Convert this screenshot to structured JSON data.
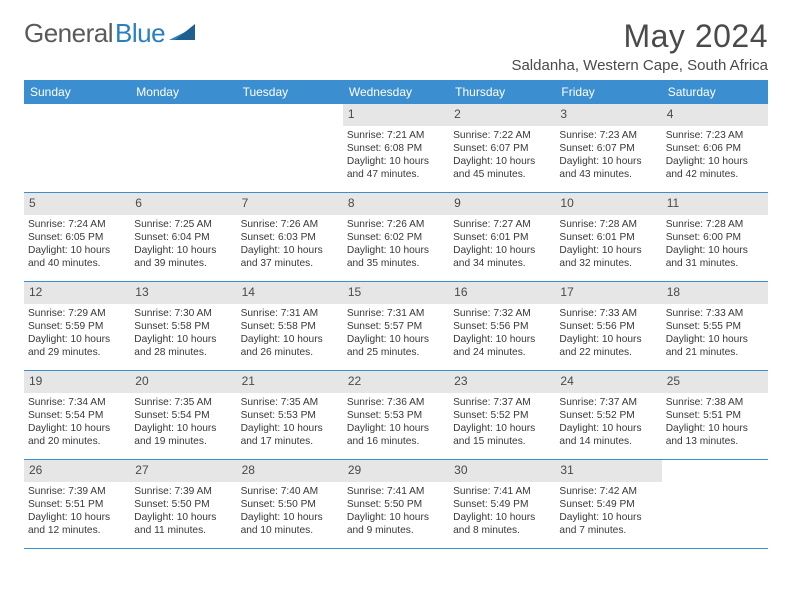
{
  "logo": {
    "part1": "General",
    "part2": "Blue"
  },
  "title": "May 2024",
  "location": "Saldanha, Western Cape, South Africa",
  "colors": {
    "header_bg": "#3b8fd1",
    "header_text": "#ffffff",
    "daynum_bg": "#e6e6e6",
    "divider": "#3b8fd1",
    "body_text": "#383838",
    "title_text": "#4a4a4a"
  },
  "daysOfWeek": [
    "Sunday",
    "Monday",
    "Tuesday",
    "Wednesday",
    "Thursday",
    "Friday",
    "Saturday"
  ],
  "weeks": [
    [
      {
        "n": "",
        "sr": "",
        "ss": "",
        "dl": ""
      },
      {
        "n": "",
        "sr": "",
        "ss": "",
        "dl": ""
      },
      {
        "n": "",
        "sr": "",
        "ss": "",
        "dl": ""
      },
      {
        "n": "1",
        "sr": "Sunrise: 7:21 AM",
        "ss": "Sunset: 6:08 PM",
        "dl": "Daylight: 10 hours and 47 minutes."
      },
      {
        "n": "2",
        "sr": "Sunrise: 7:22 AM",
        "ss": "Sunset: 6:07 PM",
        "dl": "Daylight: 10 hours and 45 minutes."
      },
      {
        "n": "3",
        "sr": "Sunrise: 7:23 AM",
        "ss": "Sunset: 6:07 PM",
        "dl": "Daylight: 10 hours and 43 minutes."
      },
      {
        "n": "4",
        "sr": "Sunrise: 7:23 AM",
        "ss": "Sunset: 6:06 PM",
        "dl": "Daylight: 10 hours and 42 minutes."
      }
    ],
    [
      {
        "n": "5",
        "sr": "Sunrise: 7:24 AM",
        "ss": "Sunset: 6:05 PM",
        "dl": "Daylight: 10 hours and 40 minutes."
      },
      {
        "n": "6",
        "sr": "Sunrise: 7:25 AM",
        "ss": "Sunset: 6:04 PM",
        "dl": "Daylight: 10 hours and 39 minutes."
      },
      {
        "n": "7",
        "sr": "Sunrise: 7:26 AM",
        "ss": "Sunset: 6:03 PM",
        "dl": "Daylight: 10 hours and 37 minutes."
      },
      {
        "n": "8",
        "sr": "Sunrise: 7:26 AM",
        "ss": "Sunset: 6:02 PM",
        "dl": "Daylight: 10 hours and 35 minutes."
      },
      {
        "n": "9",
        "sr": "Sunrise: 7:27 AM",
        "ss": "Sunset: 6:01 PM",
        "dl": "Daylight: 10 hours and 34 minutes."
      },
      {
        "n": "10",
        "sr": "Sunrise: 7:28 AM",
        "ss": "Sunset: 6:01 PM",
        "dl": "Daylight: 10 hours and 32 minutes."
      },
      {
        "n": "11",
        "sr": "Sunrise: 7:28 AM",
        "ss": "Sunset: 6:00 PM",
        "dl": "Daylight: 10 hours and 31 minutes."
      }
    ],
    [
      {
        "n": "12",
        "sr": "Sunrise: 7:29 AM",
        "ss": "Sunset: 5:59 PM",
        "dl": "Daylight: 10 hours and 29 minutes."
      },
      {
        "n": "13",
        "sr": "Sunrise: 7:30 AM",
        "ss": "Sunset: 5:58 PM",
        "dl": "Daylight: 10 hours and 28 minutes."
      },
      {
        "n": "14",
        "sr": "Sunrise: 7:31 AM",
        "ss": "Sunset: 5:58 PM",
        "dl": "Daylight: 10 hours and 26 minutes."
      },
      {
        "n": "15",
        "sr": "Sunrise: 7:31 AM",
        "ss": "Sunset: 5:57 PM",
        "dl": "Daylight: 10 hours and 25 minutes."
      },
      {
        "n": "16",
        "sr": "Sunrise: 7:32 AM",
        "ss": "Sunset: 5:56 PM",
        "dl": "Daylight: 10 hours and 24 minutes."
      },
      {
        "n": "17",
        "sr": "Sunrise: 7:33 AM",
        "ss": "Sunset: 5:56 PM",
        "dl": "Daylight: 10 hours and 22 minutes."
      },
      {
        "n": "18",
        "sr": "Sunrise: 7:33 AM",
        "ss": "Sunset: 5:55 PM",
        "dl": "Daylight: 10 hours and 21 minutes."
      }
    ],
    [
      {
        "n": "19",
        "sr": "Sunrise: 7:34 AM",
        "ss": "Sunset: 5:54 PM",
        "dl": "Daylight: 10 hours and 20 minutes."
      },
      {
        "n": "20",
        "sr": "Sunrise: 7:35 AM",
        "ss": "Sunset: 5:54 PM",
        "dl": "Daylight: 10 hours and 19 minutes."
      },
      {
        "n": "21",
        "sr": "Sunrise: 7:35 AM",
        "ss": "Sunset: 5:53 PM",
        "dl": "Daylight: 10 hours and 17 minutes."
      },
      {
        "n": "22",
        "sr": "Sunrise: 7:36 AM",
        "ss": "Sunset: 5:53 PM",
        "dl": "Daylight: 10 hours and 16 minutes."
      },
      {
        "n": "23",
        "sr": "Sunrise: 7:37 AM",
        "ss": "Sunset: 5:52 PM",
        "dl": "Daylight: 10 hours and 15 minutes."
      },
      {
        "n": "24",
        "sr": "Sunrise: 7:37 AM",
        "ss": "Sunset: 5:52 PM",
        "dl": "Daylight: 10 hours and 14 minutes."
      },
      {
        "n": "25",
        "sr": "Sunrise: 7:38 AM",
        "ss": "Sunset: 5:51 PM",
        "dl": "Daylight: 10 hours and 13 minutes."
      }
    ],
    [
      {
        "n": "26",
        "sr": "Sunrise: 7:39 AM",
        "ss": "Sunset: 5:51 PM",
        "dl": "Daylight: 10 hours and 12 minutes."
      },
      {
        "n": "27",
        "sr": "Sunrise: 7:39 AM",
        "ss": "Sunset: 5:50 PM",
        "dl": "Daylight: 10 hours and 11 minutes."
      },
      {
        "n": "28",
        "sr": "Sunrise: 7:40 AM",
        "ss": "Sunset: 5:50 PM",
        "dl": "Daylight: 10 hours and 10 minutes."
      },
      {
        "n": "29",
        "sr": "Sunrise: 7:41 AM",
        "ss": "Sunset: 5:50 PM",
        "dl": "Daylight: 10 hours and 9 minutes."
      },
      {
        "n": "30",
        "sr": "Sunrise: 7:41 AM",
        "ss": "Sunset: 5:49 PM",
        "dl": "Daylight: 10 hours and 8 minutes."
      },
      {
        "n": "31",
        "sr": "Sunrise: 7:42 AM",
        "ss": "Sunset: 5:49 PM",
        "dl": "Daylight: 10 hours and 7 minutes."
      },
      {
        "n": "",
        "sr": "",
        "ss": "",
        "dl": ""
      }
    ]
  ]
}
